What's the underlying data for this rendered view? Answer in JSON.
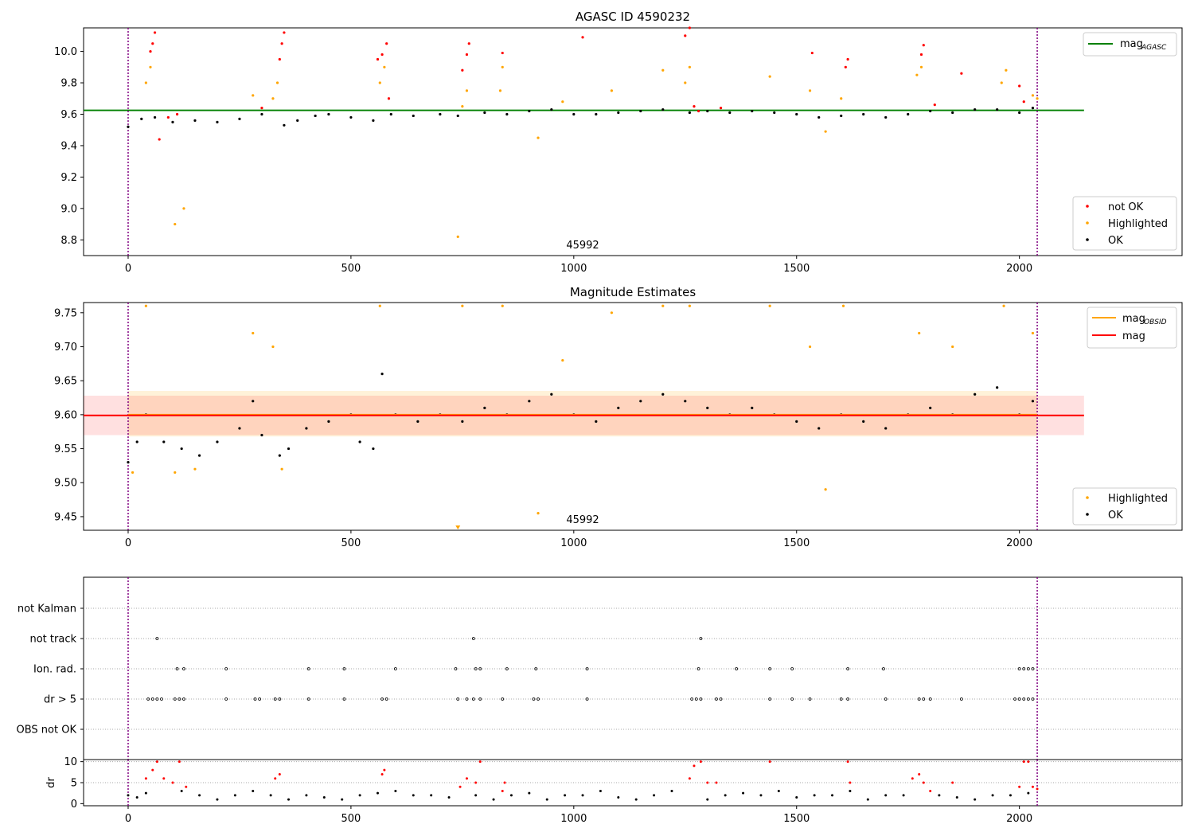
{
  "chart_data": [
    {
      "type": "scatter",
      "title": "AGASC ID 4590232",
      "annotation": "45992",
      "xlim": [
        -100,
        2365
      ],
      "ylim": [
        8.7,
        10.15
      ],
      "xticks": [
        0,
        500,
        1000,
        1500,
        2000
      ],
      "yticks": [
        8.8,
        9.0,
        9.2,
        9.4,
        9.6,
        9.8,
        10.0
      ],
      "vlines": [
        0,
        2040
      ],
      "hline": {
        "name": "mag_AGASC",
        "value": 9.625,
        "color": "#008000"
      },
      "legend_lines": [
        {
          "label": "mag",
          "sub": "AGASC",
          "color": "#008000"
        }
      ],
      "legend_points": [
        {
          "label": "not OK",
          "color": "#ff0000"
        },
        {
          "label": "Highlighted",
          "color": "#ffa500"
        },
        {
          "label": "OK",
          "color": "#000000"
        }
      ],
      "series": [
        {
          "name": "OK",
          "color": "#000000",
          "x": [
            0,
            30,
            60,
            100,
            150,
            200,
            250,
            300,
            350,
            380,
            420,
            450,
            500,
            550,
            590,
            640,
            700,
            740,
            800,
            850,
            900,
            950,
            1000,
            1050,
            1100,
            1150,
            1200,
            1260,
            1300,
            1350,
            1400,
            1450,
            1500,
            1550,
            1600,
            1650,
            1700,
            1750,
            1800,
            1850,
            1900,
            1950,
            2000,
            2030
          ],
          "y": [
            9.52,
            9.57,
            9.58,
            9.55,
            9.56,
            9.55,
            9.57,
            9.6,
            9.53,
            9.56,
            9.59,
            9.6,
            9.58,
            9.56,
            9.6,
            9.59,
            9.6,
            9.59,
            9.61,
            9.6,
            9.62,
            9.63,
            9.6,
            9.6,
            9.61,
            9.62,
            9.63,
            9.61,
            9.62,
            9.61,
            9.62,
            9.61,
            9.6,
            9.58,
            9.59,
            9.6,
            9.58,
            9.6,
            9.62,
            9.61,
            9.63,
            9.63,
            9.61,
            9.64
          ]
        },
        {
          "name": "Highlighted",
          "color": "#ffa500",
          "x": [
            40,
            50,
            280,
            325,
            335,
            565,
            575,
            750,
            760,
            835,
            840,
            975,
            1085,
            1200,
            1250,
            1260,
            1440,
            1530,
            1565,
            1600,
            1770,
            1780,
            1960,
            1970,
            2030,
            2040,
            105,
            125,
            740,
            920
          ],
          "y": [
            9.8,
            9.9,
            9.72,
            9.7,
            9.8,
            9.8,
            9.9,
            9.65,
            9.75,
            9.75,
            9.9,
            9.68,
            9.75,
            9.88,
            9.8,
            9.9,
            9.84,
            9.75,
            9.49,
            9.7,
            9.85,
            9.9,
            9.8,
            9.88,
            9.72,
            9.7,
            8.9,
            9.0,
            8.82,
            9.45
          ]
        },
        {
          "name": "not OK",
          "color": "#ff0000",
          "x": [
            50,
            55,
            60,
            70,
            90,
            110,
            300,
            340,
            345,
            350,
            560,
            570,
            580,
            585,
            750,
            760,
            765,
            840,
            1020,
            1250,
            1260,
            1270,
            1280,
            1330,
            1535,
            1610,
            1615,
            1780,
            1785,
            1810,
            1870,
            2000,
            2010
          ],
          "y": [
            10.0,
            10.05,
            10.12,
            9.44,
            9.58,
            9.6,
            9.64,
            9.95,
            10.05,
            10.12,
            9.95,
            9.98,
            10.05,
            9.7,
            9.88,
            9.98,
            10.05,
            9.99,
            10.09,
            10.1,
            10.15,
            9.65,
            9.62,
            9.64,
            9.99,
            9.9,
            9.95,
            9.98,
            10.04,
            9.66,
            9.86,
            9.78,
            9.68
          ]
        }
      ]
    },
    {
      "type": "scatter",
      "title": "Magnitude Estimates",
      "annotation": "45992",
      "xlim": [
        -100,
        2365
      ],
      "ylim": [
        9.43,
        9.765
      ],
      "xticks": [
        0,
        500,
        1000,
        1500,
        2000
      ],
      "yticks": [
        9.45,
        9.5,
        9.55,
        9.6,
        9.65,
        9.7,
        9.75
      ],
      "vlines": [
        0,
        2040
      ],
      "lines": [
        {
          "name": "mag_OBSID",
          "value": 9.6,
          "color": "#ffa500",
          "band": [
            9.568,
            9.635
          ],
          "x_range": [
            0,
            2040
          ]
        },
        {
          "name": "mag",
          "value": 9.599,
          "color": "#ff0000",
          "band": [
            9.57,
            9.628
          ],
          "x_range": [
            -100,
            2145
          ]
        }
      ],
      "legend_lines": [
        {
          "label": "mag",
          "sub": "OBSID",
          "color": "#ffa500"
        },
        {
          "label": "mag",
          "sub": "",
          "color": "#ff0000"
        }
      ],
      "legend_points": [
        {
          "label": "Highlighted",
          "color": "#ffa500"
        },
        {
          "label": "OK",
          "color": "#000000"
        }
      ],
      "series": [
        {
          "name": "OK",
          "color": "#000000",
          "x": [
            0,
            20,
            40,
            80,
            120,
            160,
            200,
            250,
            280,
            300,
            340,
            360,
            400,
            450,
            500,
            520,
            550,
            570,
            600,
            650,
            700,
            750,
            800,
            850,
            900,
            950,
            1000,
            1050,
            1100,
            1150,
            1200,
            1250,
            1300,
            1350,
            1400,
            1450,
            1500,
            1550,
            1600,
            1650,
            1700,
            1750,
            1800,
            1850,
            1900,
            1950,
            2000,
            2030
          ],
          "y": [
            9.53,
            9.56,
            9.6,
            9.56,
            9.55,
            9.54,
            9.56,
            9.58,
            9.62,
            9.57,
            9.54,
            9.55,
            9.58,
            9.59,
            9.6,
            9.56,
            9.55,
            9.66,
            9.6,
            9.59,
            9.6,
            9.59,
            9.61,
            9.6,
            9.62,
            9.63,
            9.6,
            9.59,
            9.61,
            9.62,
            9.63,
            9.62,
            9.61,
            9.6,
            9.61,
            9.6,
            9.59,
            9.58,
            9.6,
            9.59,
            9.58,
            9.6,
            9.61,
            9.6,
            9.63,
            9.64,
            9.6,
            9.62
          ]
        },
        {
          "name": "Highlighted",
          "color": "#ffa500",
          "x": [
            40,
            280,
            325,
            565,
            750,
            840,
            975,
            1085,
            1200,
            1260,
            1440,
            1530,
            1605,
            1775,
            1850,
            1965,
            2030,
            10,
            105,
            150,
            345,
            1565,
            920,
            740
          ],
          "y": [
            9.76,
            9.72,
            9.7,
            9.76,
            9.76,
            9.76,
            9.68,
            9.75,
            9.76,
            9.76,
            9.76,
            9.7,
            9.76,
            9.72,
            9.7,
            9.76,
            9.72,
            9.515,
            9.515,
            9.52,
            9.52,
            9.49,
            9.455,
            9.435
          ]
        }
      ]
    },
    {
      "type": "scatter",
      "title": "",
      "xlim": [
        -100,
        2365
      ],
      "vlines": [
        0,
        2040
      ],
      "flag_rows": [
        "not Kalman",
        "not track",
        "Ion. rad.",
        "dr > 5",
        "OBS not OK"
      ],
      "flags": {
        "not Kalman": [],
        "not track": [
          65,
          775,
          1285
        ],
        "Ion. rad.": [
          110,
          125,
          220,
          405,
          485,
          600,
          735,
          780,
          790,
          850,
          915,
          1030,
          1280,
          1365,
          1440,
          1490,
          1615,
          1695,
          2000,
          2010,
          2020,
          2030
        ],
        "dr > 5": [
          45,
          55,
          65,
          75,
          105,
          115,
          125,
          220,
          285,
          295,
          330,
          340,
          405,
          485,
          570,
          580,
          740,
          760,
          775,
          790,
          840,
          910,
          920,
          1030,
          1265,
          1275,
          1285,
          1320,
          1330,
          1440,
          1490,
          1530,
          1600,
          1615,
          1700,
          1775,
          1785,
          1800,
          1870,
          1990,
          2000,
          2010,
          2020,
          2030
        ]
      }
    },
    {
      "type": "scatter",
      "title": "",
      "ylabel": "dr",
      "xlim": [
        -100,
        2365
      ],
      "ylim": [
        -0.5,
        10.5
      ],
      "xticks": [
        0,
        500,
        1000,
        1500,
        2000
      ],
      "yticks": [
        0,
        5,
        10
      ],
      "vlines": [
        0,
        2040
      ],
      "series": [
        {
          "name": "dr_ok",
          "color": "#000000",
          "x": [
            0,
            20,
            40,
            120,
            160,
            200,
            240,
            280,
            320,
            360,
            400,
            440,
            480,
            520,
            560,
            600,
            640,
            680,
            720,
            780,
            820,
            860,
            900,
            940,
            980,
            1020,
            1060,
            1100,
            1140,
            1180,
            1220,
            1300,
            1340,
            1380,
            1420,
            1460,
            1500,
            1540,
            1580,
            1620,
            1660,
            1700,
            1740,
            1820,
            1860,
            1900,
            1940,
            1980,
            2020
          ],
          "y": [
            2,
            1.5,
            2.5,
            3,
            2,
            1,
            2,
            3,
            2,
            1,
            2,
            1.5,
            1,
            2,
            2.5,
            3,
            2,
            2,
            1.5,
            2,
            1,
            2,
            2.5,
            1,
            2,
            2,
            3,
            1.5,
            1,
            2,
            3,
            1,
            2,
            2.5,
            2,
            3,
            1.5,
            2,
            2,
            3,
            1,
            2,
            2,
            2,
            1.5,
            1,
            2,
            2,
            2.5
          ]
        },
        {
          "name": "dr_flagged",
          "color": "#ff0000",
          "x": [
            40,
            55,
            65,
            80,
            100,
            115,
            130,
            330,
            340,
            570,
            575,
            745,
            760,
            780,
            790,
            840,
            845,
            1260,
            1270,
            1285,
            1300,
            1320,
            1440,
            1615,
            1620,
            1760,
            1775,
            1785,
            1800,
            1850,
            2000,
            2010,
            2020,
            2030,
            2040
          ],
          "y": [
            6,
            8,
            10,
            6,
            5,
            10,
            4,
            6,
            7,
            7,
            8,
            4,
            6,
            5,
            10,
            3,
            5,
            6,
            9,
            10,
            5,
            5,
            10,
            10,
            5,
            6,
            7,
            5,
            3,
            5,
            4,
            10,
            10,
            4,
            3.5
          ]
        }
      ]
    }
  ]
}
